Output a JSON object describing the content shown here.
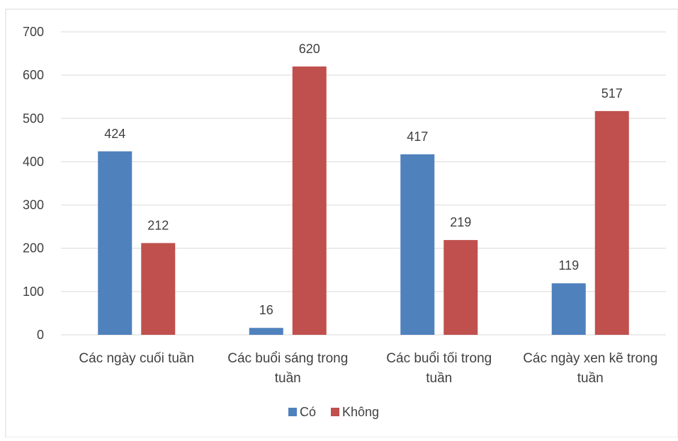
{
  "chart_data": {
    "type": "bar",
    "categories": [
      [
        "Các ngày cuối tuần"
      ],
      [
        "Các buổi sáng trong",
        "tuần"
      ],
      [
        "Các buổi tối trong",
        "tuần"
      ],
      [
        "Các ngày xen kẽ trong",
        "tuần"
      ]
    ],
    "series": [
      {
        "name": "Có",
        "color": "#4f81bd",
        "values": [
          424,
          16,
          417,
          119
        ]
      },
      {
        "name": "Không",
        "color": "#c0504d",
        "values": [
          212,
          620,
          219,
          517
        ]
      }
    ],
    "ylim": [
      0,
      700
    ],
    "yticks": [
      0,
      100,
      200,
      300,
      400,
      500,
      600,
      700
    ],
    "grid": true,
    "legend_position": "bottom",
    "title": "",
    "xlabel": "",
    "ylabel": ""
  }
}
